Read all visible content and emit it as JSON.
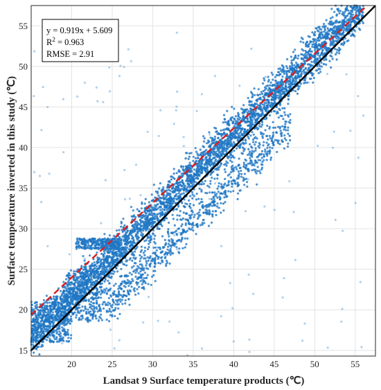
{
  "chart_data": {
    "type": "scatter",
    "title": "",
    "xlabel": "Landsat 9 Surface temperature products (℃)",
    "ylabel": "Surface temperature inverted in this study (℃)",
    "xlim": [
      15,
      57.5
    ],
    "ylim": [
      14.3,
      57.5
    ],
    "xticks": [
      20,
      25,
      30,
      35,
      40,
      45,
      50,
      55
    ],
    "yticks": [
      15,
      20,
      25,
      30,
      35,
      40,
      45,
      50,
      55
    ],
    "grid": true,
    "point_color": "#1f77c4",
    "fit_line": {
      "slope": 0.919,
      "intercept": 5.609,
      "color": "#d62020",
      "style": "dashed"
    },
    "identity_line": {
      "slope": 1,
      "intercept": 0,
      "color": "#000000",
      "style": "solid"
    },
    "annotation": {
      "equation": "y = 0.919x + 5.609",
      "r2_prefix": "R",
      "r2_sup": "2",
      "r2_value": " = 0.963",
      "rmse": "RMSE = 2.91",
      "placement": "top-left"
    },
    "density_regions": [
      {
        "x_range": [
          15,
          56
        ],
        "offset_mean": 1.6,
        "offset_spread": 2.2,
        "weight": 0.62
      },
      {
        "x_range": [
          25,
          47
        ],
        "offset_mean": -4.0,
        "offset_spread": 2.0,
        "weight": 0.12
      },
      {
        "x_range": [
          20.5,
          26
        ],
        "y_range": [
          27.5,
          28.8
        ],
        "weight": 0.04
      },
      {
        "x_range": [
          15,
          20
        ],
        "y_range": [
          16,
          21
        ],
        "weight": 0.05
      },
      {
        "x_range": [
          19,
          25
        ],
        "y_range": [
          18.5,
          25
        ],
        "weight": 0.05
      },
      {
        "x_range": [
          15,
          56
        ],
        "y_range": [
          14.3,
          55
        ],
        "weight": 0.02
      }
    ]
  }
}
